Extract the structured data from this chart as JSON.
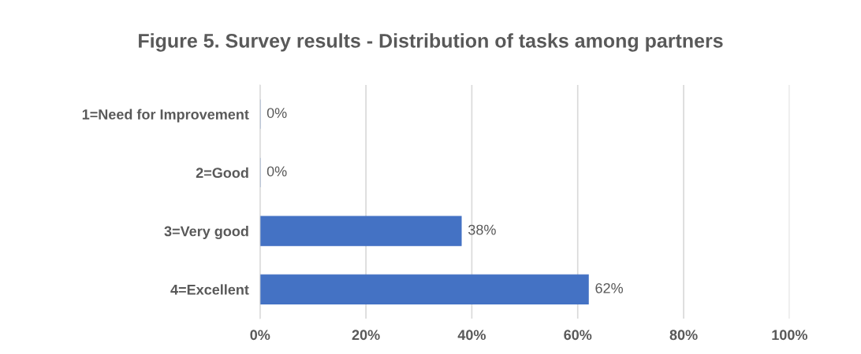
{
  "chart_data": {
    "type": "bar",
    "orientation": "horizontal",
    "title": "Figure 5. Survey results - Distribution of tasks among partners",
    "categories": [
      "1=Need for Improvement",
      "2=Good",
      "3=Very good",
      "4=Excellent"
    ],
    "values": [
      0,
      0,
      38,
      62
    ],
    "value_labels": [
      "0%",
      "0%",
      "38%",
      "62%"
    ],
    "color": "#4472c4",
    "xlim": [
      0,
      100
    ],
    "xticks": [
      {
        "value": 0,
        "label": "0%"
      },
      {
        "value": 20,
        "label": "20%"
      },
      {
        "value": 40,
        "label": "40%"
      },
      {
        "value": 60,
        "label": "60%"
      },
      {
        "value": 80,
        "label": "80%"
      },
      {
        "value": 100,
        "label": "100%"
      }
    ],
    "grid": "x"
  }
}
